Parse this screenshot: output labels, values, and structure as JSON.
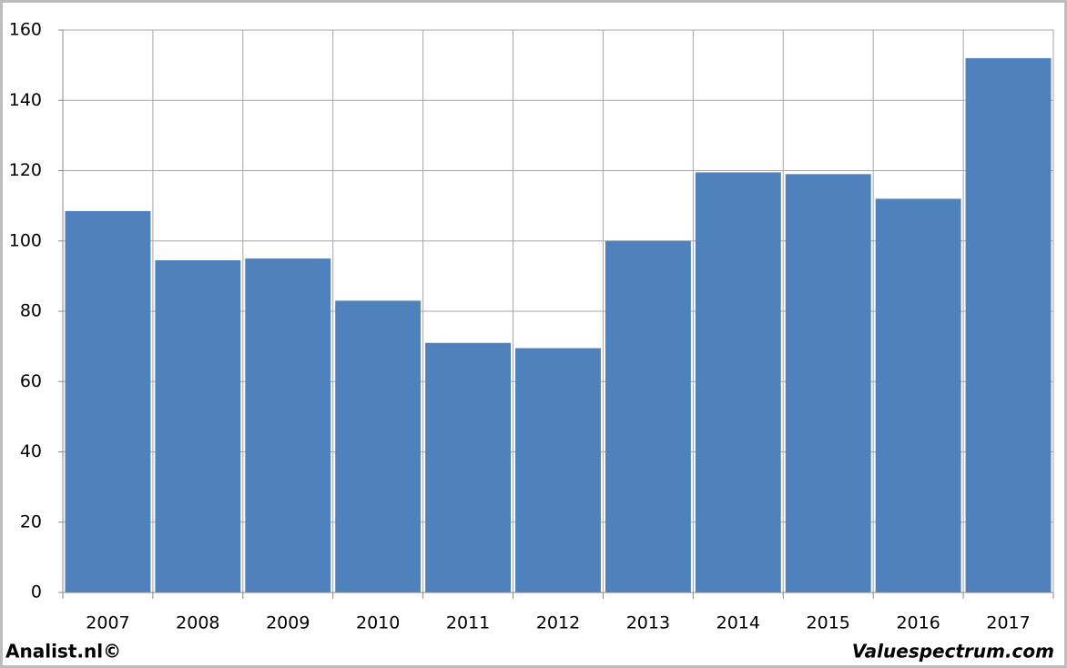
{
  "chart_data": {
    "type": "bar",
    "categories": [
      "2007",
      "2008",
      "2009",
      "2010",
      "2011",
      "2012",
      "2013",
      "2014",
      "2015",
      "2016",
      "2017"
    ],
    "values": [
      108.5,
      94.5,
      95,
      83,
      71,
      69.5,
      100,
      119.5,
      119,
      112,
      152
    ],
    "color": "#4f81bd",
    "ylim": [
      0,
      160
    ],
    "yticks": [
      0,
      20,
      40,
      60,
      80,
      100,
      120,
      140,
      160
    ],
    "grid": true,
    "footer_left": "Analist.nl©",
    "footer_right": "Valuespectrum.com"
  }
}
